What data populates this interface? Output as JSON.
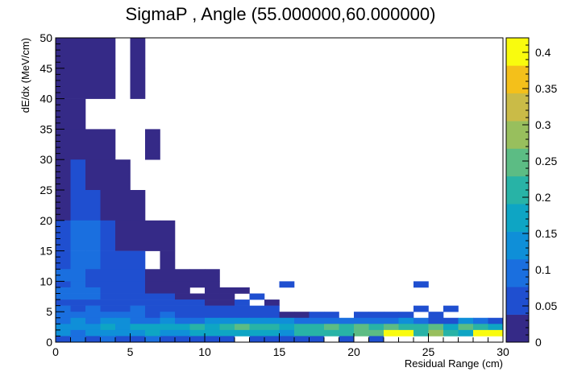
{
  "chart_data": {
    "type": "heatmap",
    "title": "SigmaP , Angle (55.000000,60.000000)",
    "xlabel": "Residual Range (cm)",
    "ylabel": "dE/dx (MeV/cm)",
    "xlim": [
      0,
      30
    ],
    "ylim": [
      0,
      50
    ],
    "zlim": [
      0,
      0.42
    ],
    "x_bin_width": 1,
    "y_bin_width": 1,
    "x_ticks": [
      "0",
      "5",
      "10",
      "15",
      "20",
      "25",
      "30"
    ],
    "y_ticks": [
      "0",
      "5",
      "10",
      "15",
      "20",
      "25",
      "30",
      "35",
      "40",
      "45",
      "50"
    ],
    "z_ticks": [
      "0",
      "0.05",
      "0.1",
      "0.15",
      "0.2",
      "0.25",
      "0.3",
      "0.35",
      "0.4"
    ],
    "palette": [
      "#352a87",
      "#1f4fd0",
      "#1a6fdf",
      "#0f8fd8",
      "#0ea5c4",
      "#28b3a6",
      "#5cbc84",
      "#98bf5d",
      "#cabb47",
      "#f4c01a",
      "#f9fb0e"
    ],
    "cells": [
      [
        0,
        45,
        50,
        0.02
      ],
      [
        1,
        45,
        50,
        0.02
      ],
      [
        2,
        45,
        50,
        0.02
      ],
      [
        3,
        45,
        50,
        0.02
      ],
      [
        5,
        45,
        50,
        0.02
      ],
      [
        0,
        40,
        45,
        0.02
      ],
      [
        1,
        40,
        45,
        0.02
      ],
      [
        2,
        40,
        45,
        0.02
      ],
      [
        3,
        40,
        45,
        0.02
      ],
      [
        5,
        40,
        45,
        0.02
      ],
      [
        0,
        35,
        40,
        0.02
      ],
      [
        1,
        35,
        40,
        0.02
      ],
      [
        0,
        30,
        35,
        0.02
      ],
      [
        1,
        30,
        35,
        0.02
      ],
      [
        2,
        30,
        35,
        0.02
      ],
      [
        3,
        30,
        35,
        0.02
      ],
      [
        6,
        30,
        35,
        0.02
      ],
      [
        0,
        25,
        30,
        0.02
      ],
      [
        1,
        25,
        30,
        0.04
      ],
      [
        2,
        25,
        30,
        0.02
      ],
      [
        3,
        25,
        30,
        0.02
      ],
      [
        4,
        25,
        30,
        0.02
      ],
      [
        0,
        20,
        25,
        0.02
      ],
      [
        1,
        20,
        25,
        0.06
      ],
      [
        2,
        20,
        25,
        0.04
      ],
      [
        3,
        20,
        25,
        0.02
      ],
      [
        4,
        20,
        25,
        0.02
      ],
      [
        5,
        20,
        25,
        0.02
      ],
      [
        0,
        15,
        20,
        0.05
      ],
      [
        1,
        15,
        20,
        0.07
      ],
      [
        2,
        15,
        20,
        0.09
      ],
      [
        3,
        15,
        20,
        0.05
      ],
      [
        4,
        15,
        20,
        0.02
      ],
      [
        5,
        15,
        20,
        0.02
      ],
      [
        6,
        15,
        20,
        0.02
      ],
      [
        7,
        15,
        20,
        0.02
      ],
      [
        0,
        12,
        15,
        0.06
      ],
      [
        1,
        12,
        15,
        0.08
      ],
      [
        2,
        12,
        15,
        0.07
      ],
      [
        3,
        12,
        15,
        0.05
      ],
      [
        4,
        12,
        15,
        0.05
      ],
      [
        5,
        12,
        15,
        0.05
      ],
      [
        7,
        12,
        15,
        0.02
      ],
      [
        0,
        10,
        12,
        0.07
      ],
      [
        1,
        10,
        12,
        0.08
      ],
      [
        2,
        10,
        12,
        0.06
      ],
      [
        3,
        10,
        12,
        0.05
      ],
      [
        4,
        10,
        12,
        0.05
      ],
      [
        5,
        10,
        12,
        0.05
      ],
      [
        6,
        10,
        12,
        0.02
      ],
      [
        7,
        10,
        12,
        0.02
      ],
      [
        8,
        10,
        12,
        0.02
      ],
      [
        9,
        10,
        12,
        0.02
      ],
      [
        10,
        10,
        12,
        0.02
      ],
      [
        0,
        9,
        10,
        0.06
      ],
      [
        1,
        9,
        10,
        0.07
      ],
      [
        2,
        9,
        10,
        0.05
      ],
      [
        3,
        9,
        10,
        0.05
      ],
      [
        4,
        9,
        10,
        0.05
      ],
      [
        5,
        9,
        10,
        0.04
      ],
      [
        6,
        9,
        10,
        0.02
      ],
      [
        7,
        9,
        10,
        0.02
      ],
      [
        8,
        9,
        10,
        0.02
      ],
      [
        9,
        9,
        10,
        0.02
      ],
      [
        10,
        9,
        10,
        0.02
      ],
      [
        15,
        9,
        10,
        0.05
      ],
      [
        24,
        9,
        10,
        0.05
      ],
      [
        0,
        8,
        9,
        0.07
      ],
      [
        1,
        8,
        9,
        0.09
      ],
      [
        2,
        8,
        9,
        0.07
      ],
      [
        3,
        8,
        9,
        0.03
      ],
      [
        4,
        8,
        9,
        0.05
      ],
      [
        5,
        8,
        9,
        0.05
      ],
      [
        6,
        8,
        9,
        0.02
      ],
      [
        7,
        8,
        9,
        0.02
      ],
      [
        8,
        8,
        9,
        0.02
      ],
      [
        10,
        8,
        9,
        0.02
      ],
      [
        11,
        8,
        9,
        0.02
      ],
      [
        12,
        8,
        9,
        0.02
      ],
      [
        0,
        7,
        8,
        0.08
      ],
      [
        1,
        7,
        8,
        0.07
      ],
      [
        2,
        7,
        8,
        0.08
      ],
      [
        3,
        7,
        8,
        0.06
      ],
      [
        4,
        7,
        8,
        0.04
      ],
      [
        5,
        7,
        8,
        0.06
      ],
      [
        6,
        7,
        8,
        0.03
      ],
      [
        7,
        7,
        8,
        0.03
      ],
      [
        8,
        7,
        8,
        0.02
      ],
      [
        9,
        7,
        8,
        0.02
      ],
      [
        10,
        7,
        8,
        0.02
      ],
      [
        11,
        7,
        8,
        0.02
      ],
      [
        13,
        7,
        8,
        0.05
      ],
      [
        0,
        6,
        7,
        0.06
      ],
      [
        1,
        6,
        7,
        0.03
      ],
      [
        2,
        6,
        7,
        0.06
      ],
      [
        3,
        6,
        7,
        0.06
      ],
      [
        4,
        6,
        7,
        0.05
      ],
      [
        5,
        6,
        7,
        0.05
      ],
      [
        6,
        6,
        7,
        0.05
      ],
      [
        7,
        6,
        7,
        0.04
      ],
      [
        8,
        6,
        7,
        0.03
      ],
      [
        9,
        6,
        7,
        0.03
      ],
      [
        10,
        6,
        7,
        0.02
      ],
      [
        11,
        6,
        7,
        0.02
      ],
      [
        12,
        6,
        7,
        0.03
      ],
      [
        14,
        6,
        7,
        0.02
      ],
      [
        0,
        5,
        6,
        0.07
      ],
      [
        1,
        5,
        6,
        0.06
      ],
      [
        2,
        5,
        6,
        0.07
      ],
      [
        3,
        5,
        6,
        0.06
      ],
      [
        4,
        5,
        6,
        0.06
      ],
      [
        5,
        5,
        6,
        0.07
      ],
      [
        6,
        5,
        6,
        0.06
      ],
      [
        7,
        5,
        6,
        0.05
      ],
      [
        8,
        5,
        6,
        0.04
      ],
      [
        9,
        5,
        6,
        0.05
      ],
      [
        10,
        5,
        6,
        0.05
      ],
      [
        11,
        5,
        6,
        0.04
      ],
      [
        12,
        5,
        6,
        0.03
      ],
      [
        13,
        5,
        6,
        0.03
      ],
      [
        14,
        5,
        6,
        0.03
      ],
      [
        24,
        5,
        6,
        0.05
      ],
      [
        26,
        5,
        6,
        0.03
      ],
      [
        0,
        4,
        5,
        0.09
      ],
      [
        1,
        4,
        5,
        0.08
      ],
      [
        2,
        4,
        5,
        0.08
      ],
      [
        3,
        4,
        5,
        0.07
      ],
      [
        4,
        4,
        5,
        0.08
      ],
      [
        5,
        4,
        5,
        0.07
      ],
      [
        6,
        4,
        5,
        0.06
      ],
      [
        7,
        4,
        5,
        0.07
      ],
      [
        8,
        4,
        5,
        0.06
      ],
      [
        9,
        4,
        5,
        0.06
      ],
      [
        10,
        4,
        5,
        0.06
      ],
      [
        11,
        4,
        5,
        0.05
      ],
      [
        12,
        4,
        5,
        0.05
      ],
      [
        13,
        4,
        5,
        0.05
      ],
      [
        14,
        4,
        5,
        0.05
      ],
      [
        15,
        4,
        5,
        0.02
      ],
      [
        16,
        4,
        5,
        0.02
      ],
      [
        17,
        4,
        5,
        0.06
      ],
      [
        18,
        4,
        5,
        0.05
      ],
      [
        20,
        4,
        5,
        0.06
      ],
      [
        21,
        4,
        5,
        0.05
      ],
      [
        22,
        4,
        5,
        0.05
      ],
      [
        23,
        4,
        5,
        0.04
      ],
      [
        25,
        4,
        5,
        0.06
      ],
      [
        0,
        3,
        4,
        0.1
      ],
      [
        1,
        3,
        4,
        0.11
      ],
      [
        2,
        3,
        4,
        0.1
      ],
      [
        3,
        3,
        4,
        0.12
      ],
      [
        4,
        3,
        4,
        0.11
      ],
      [
        5,
        3,
        4,
        0.1
      ],
      [
        6,
        3,
        4,
        0.1
      ],
      [
        7,
        3,
        4,
        0.12
      ],
      [
        8,
        3,
        4,
        0.1
      ],
      [
        9,
        3,
        4,
        0.1
      ],
      [
        10,
        3,
        4,
        0.11
      ],
      [
        11,
        3,
        4,
        0.12
      ],
      [
        12,
        3,
        4,
        0.13
      ],
      [
        13,
        3,
        4,
        0.12
      ],
      [
        14,
        3,
        4,
        0.13
      ],
      [
        15,
        3,
        4,
        0.11
      ],
      [
        16,
        3,
        4,
        0.1
      ],
      [
        17,
        3,
        4,
        0.09
      ],
      [
        18,
        3,
        4,
        0.1
      ],
      [
        19,
        3,
        4,
        0.08
      ],
      [
        20,
        3,
        4,
        0.07
      ],
      [
        21,
        3,
        4,
        0.1
      ],
      [
        22,
        3,
        4,
        0.08
      ],
      [
        23,
        3,
        4,
        0.13
      ],
      [
        24,
        3,
        4,
        0.09
      ],
      [
        25,
        3,
        4,
        0.06
      ],
      [
        26,
        3,
        4,
        0.05
      ],
      [
        27,
        3,
        4,
        0.12
      ],
      [
        28,
        3,
        4,
        0.08
      ],
      [
        29,
        3,
        4,
        0.05
      ],
      [
        0,
        2,
        3,
        0.13
      ],
      [
        1,
        2,
        3,
        0.12
      ],
      [
        2,
        2,
        3,
        0.14
      ],
      [
        3,
        2,
        3,
        0.15
      ],
      [
        4,
        2,
        3,
        0.14
      ],
      [
        5,
        2,
        3,
        0.16
      ],
      [
        6,
        2,
        3,
        0.17
      ],
      [
        7,
        2,
        3,
        0.18
      ],
      [
        8,
        2,
        3,
        0.16
      ],
      [
        9,
        2,
        3,
        0.2
      ],
      [
        10,
        2,
        3,
        0.18
      ],
      [
        11,
        2,
        3,
        0.22
      ],
      [
        12,
        2,
        3,
        0.25
      ],
      [
        13,
        2,
        3,
        0.22
      ],
      [
        14,
        2,
        3,
        0.2
      ],
      [
        15,
        2,
        3,
        0.18
      ],
      [
        16,
        2,
        3,
        0.21
      ],
      [
        17,
        2,
        3,
        0.23
      ],
      [
        18,
        2,
        3,
        0.25
      ],
      [
        19,
        2,
        3,
        0.2
      ],
      [
        20,
        2,
        3,
        0.27
      ],
      [
        21,
        2,
        3,
        0.22
      ],
      [
        22,
        2,
        3,
        0.24
      ],
      [
        23,
        2,
        3,
        0.2
      ],
      [
        24,
        2,
        3,
        0.22
      ],
      [
        25,
        2,
        3,
        0.24
      ],
      [
        26,
        2,
        3,
        0.18
      ],
      [
        27,
        2,
        3,
        0.26
      ],
      [
        28,
        2,
        3,
        0.2
      ],
      [
        29,
        2,
        3,
        0.18
      ],
      [
        0,
        1,
        2,
        0.12
      ],
      [
        1,
        1,
        2,
        0.1
      ],
      [
        2,
        1,
        2,
        0.14
      ],
      [
        3,
        1,
        2,
        0.13
      ],
      [
        4,
        1,
        2,
        0.14
      ],
      [
        5,
        1,
        2,
        0.12
      ],
      [
        6,
        1,
        2,
        0.15
      ],
      [
        7,
        1,
        2,
        0.13
      ],
      [
        8,
        1,
        2,
        0.14
      ],
      [
        9,
        1,
        2,
        0.16
      ],
      [
        10,
        1,
        2,
        0.18
      ],
      [
        11,
        1,
        2,
        0.16
      ],
      [
        12,
        1,
        2,
        0.17
      ],
      [
        13,
        1,
        2,
        0.15
      ],
      [
        14,
        1,
        2,
        0.16
      ],
      [
        15,
        1,
        2,
        0.14
      ],
      [
        16,
        1,
        2,
        0.2
      ],
      [
        17,
        1,
        2,
        0.22
      ],
      [
        18,
        1,
        2,
        0.2
      ],
      [
        19,
        1,
        2,
        0.23
      ],
      [
        20,
        1,
        2,
        0.25
      ],
      [
        21,
        1,
        2,
        0.24
      ],
      [
        22,
        1,
        2,
        0.4
      ],
      [
        23,
        1,
        2,
        0.42
      ],
      [
        24,
        1,
        2,
        0.22
      ],
      [
        25,
        1,
        2,
        0.3
      ],
      [
        26,
        1,
        2,
        0.23
      ],
      [
        27,
        1,
        2,
        0.18
      ],
      [
        28,
        1,
        2,
        0.4
      ],
      [
        29,
        1,
        2,
        0.42
      ],
      [
        0,
        0,
        1,
        0.06
      ],
      [
        1,
        0,
        1,
        0.08
      ],
      [
        2,
        0,
        1,
        0.05
      ],
      [
        3,
        0,
        1,
        0.07
      ],
      [
        4,
        0,
        1,
        0.06
      ],
      [
        5,
        0,
        1,
        0.05
      ],
      [
        6,
        0,
        1,
        0.07
      ],
      [
        7,
        0,
        1,
        0.05
      ],
      [
        8,
        0,
        1,
        0.04
      ],
      [
        9,
        0,
        1,
        0.05
      ],
      [
        10,
        0,
        1,
        0.04
      ],
      [
        11,
        0,
        1,
        0.03
      ],
      [
        13,
        0,
        1,
        0.04
      ],
      [
        14,
        0,
        1,
        0.03
      ],
      [
        15,
        0,
        1,
        0.05
      ],
      [
        16,
        0,
        1,
        0.04
      ],
      [
        17,
        0,
        1,
        0.03
      ],
      [
        19,
        0,
        1,
        0.04
      ],
      [
        21,
        0,
        1,
        0.03
      ]
    ]
  }
}
